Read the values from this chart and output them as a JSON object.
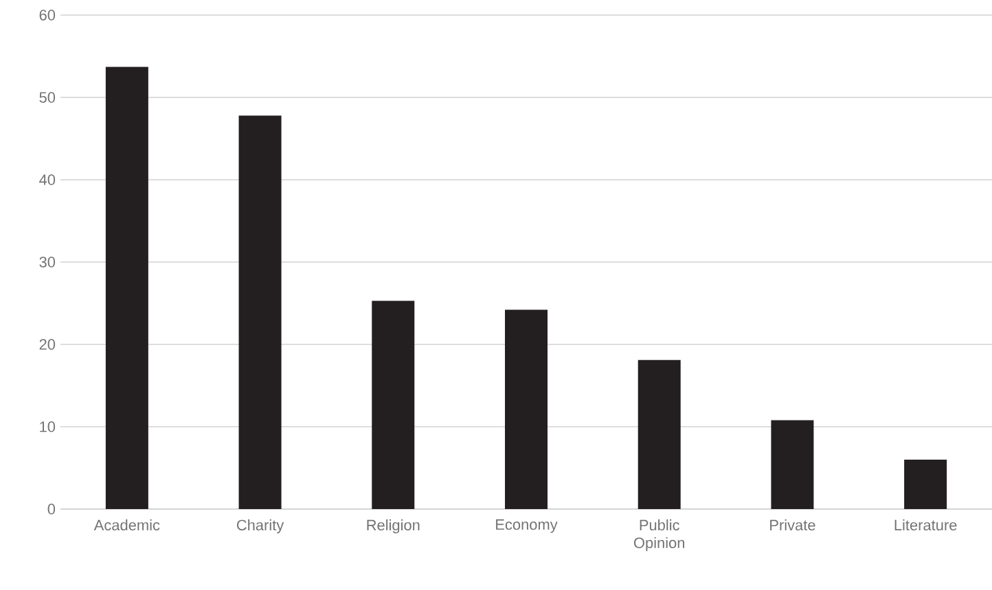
{
  "chart_data": {
    "type": "bar",
    "categories": [
      "Academic",
      "Charity",
      "Religion",
      "Economy",
      "Public Opinion",
      "Private",
      "Literature"
    ],
    "values": [
      53.7,
      47.8,
      25.3,
      24.2,
      18.1,
      10.8,
      6.0
    ],
    "color": "#231f20",
    "ylim": [
      0,
      60
    ],
    "yticks": [
      0,
      10,
      20,
      30,
      40,
      50,
      60
    ],
    "grid": "y"
  }
}
